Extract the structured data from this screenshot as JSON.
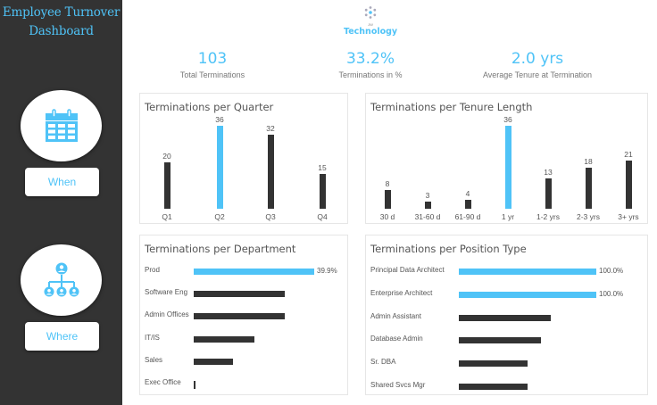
{
  "sidebar": {
    "title_line1": "Employee Turnover",
    "title_line2": "Dashboard",
    "nav": [
      {
        "icon": "calendar-icon",
        "label": "When"
      },
      {
        "icon": "org-chart-icon",
        "label": "Where"
      }
    ]
  },
  "logo": {
    "small": "JW",
    "name": "Technology"
  },
  "kpis": [
    {
      "value": "103",
      "label": "Total Terminations"
    },
    {
      "value": "33.2%",
      "label": "Terminations in %"
    },
    {
      "value": "2.0 yrs",
      "label": "Average Tenure at Termination"
    }
  ],
  "colors": {
    "accent": "#4fc3f7",
    "bar": "#333333",
    "sidebar": "#333333"
  },
  "panels": {
    "quarter": {
      "title": "Terminations per Quarter"
    },
    "tenure": {
      "title": "Terminations per Tenure Length"
    },
    "department": {
      "title": "Terminations per Department"
    },
    "position": {
      "title": "Terminations per Position Type"
    }
  },
  "chart_data": [
    {
      "type": "bar",
      "title": "Terminations per Quarter",
      "categories": [
        "Q1",
        "Q2",
        "Q3",
        "Q4"
      ],
      "values": [
        20,
        36,
        32,
        15
      ],
      "highlight": [
        false,
        true,
        false,
        false
      ],
      "labels": [
        "20",
        "36",
        "32",
        "15"
      ],
      "xlabel": "",
      "ylabel": "",
      "grid": false
    },
    {
      "type": "bar",
      "title": "Terminations per Tenure Length",
      "categories": [
        "30 d",
        "31-60 d",
        "61-90 d",
        "1 yr",
        "1-2 yrs",
        "2-3 yrs",
        "3+ yrs"
      ],
      "values": [
        8,
        3,
        4,
        36,
        13,
        18,
        21
      ],
      "highlight": [
        false,
        false,
        false,
        true,
        false,
        false,
        false
      ],
      "labels": [
        "8",
        "3",
        "4",
        "36",
        "13",
        "18",
        "21"
      ],
      "xlabel": "",
      "ylabel": "",
      "grid": false
    },
    {
      "type": "bar",
      "orientation": "horizontal",
      "title": "Terminations per Department",
      "categories": [
        "Prod",
        "Software Eng",
        "Admin Offices",
        "IT/IS",
        "Sales",
        "Exec Office"
      ],
      "values": [
        39.9,
        30.0,
        30.0,
        20.0,
        13.0,
        0.5
      ],
      "highlight": [
        true,
        false,
        false,
        false,
        false,
        false
      ],
      "labels": [
        "39.9%",
        "",
        "",
        "",
        "",
        ""
      ],
      "unit": "%"
    },
    {
      "type": "bar",
      "orientation": "horizontal",
      "title": "Terminations per Position Type",
      "categories": [
        "Principal Data Architect",
        "Enterprise Architect",
        "Admin Assistant",
        "Database Admin",
        "Sr. DBA",
        "Shared Svcs Mgr"
      ],
      "values": [
        100.0,
        100.0,
        66.7,
        60.0,
        50.0,
        50.0
      ],
      "highlight": [
        true,
        true,
        false,
        false,
        false,
        false
      ],
      "labels": [
        "100.0%",
        "100.0%",
        "",
        "",
        "",
        ""
      ],
      "unit": "%"
    }
  ]
}
